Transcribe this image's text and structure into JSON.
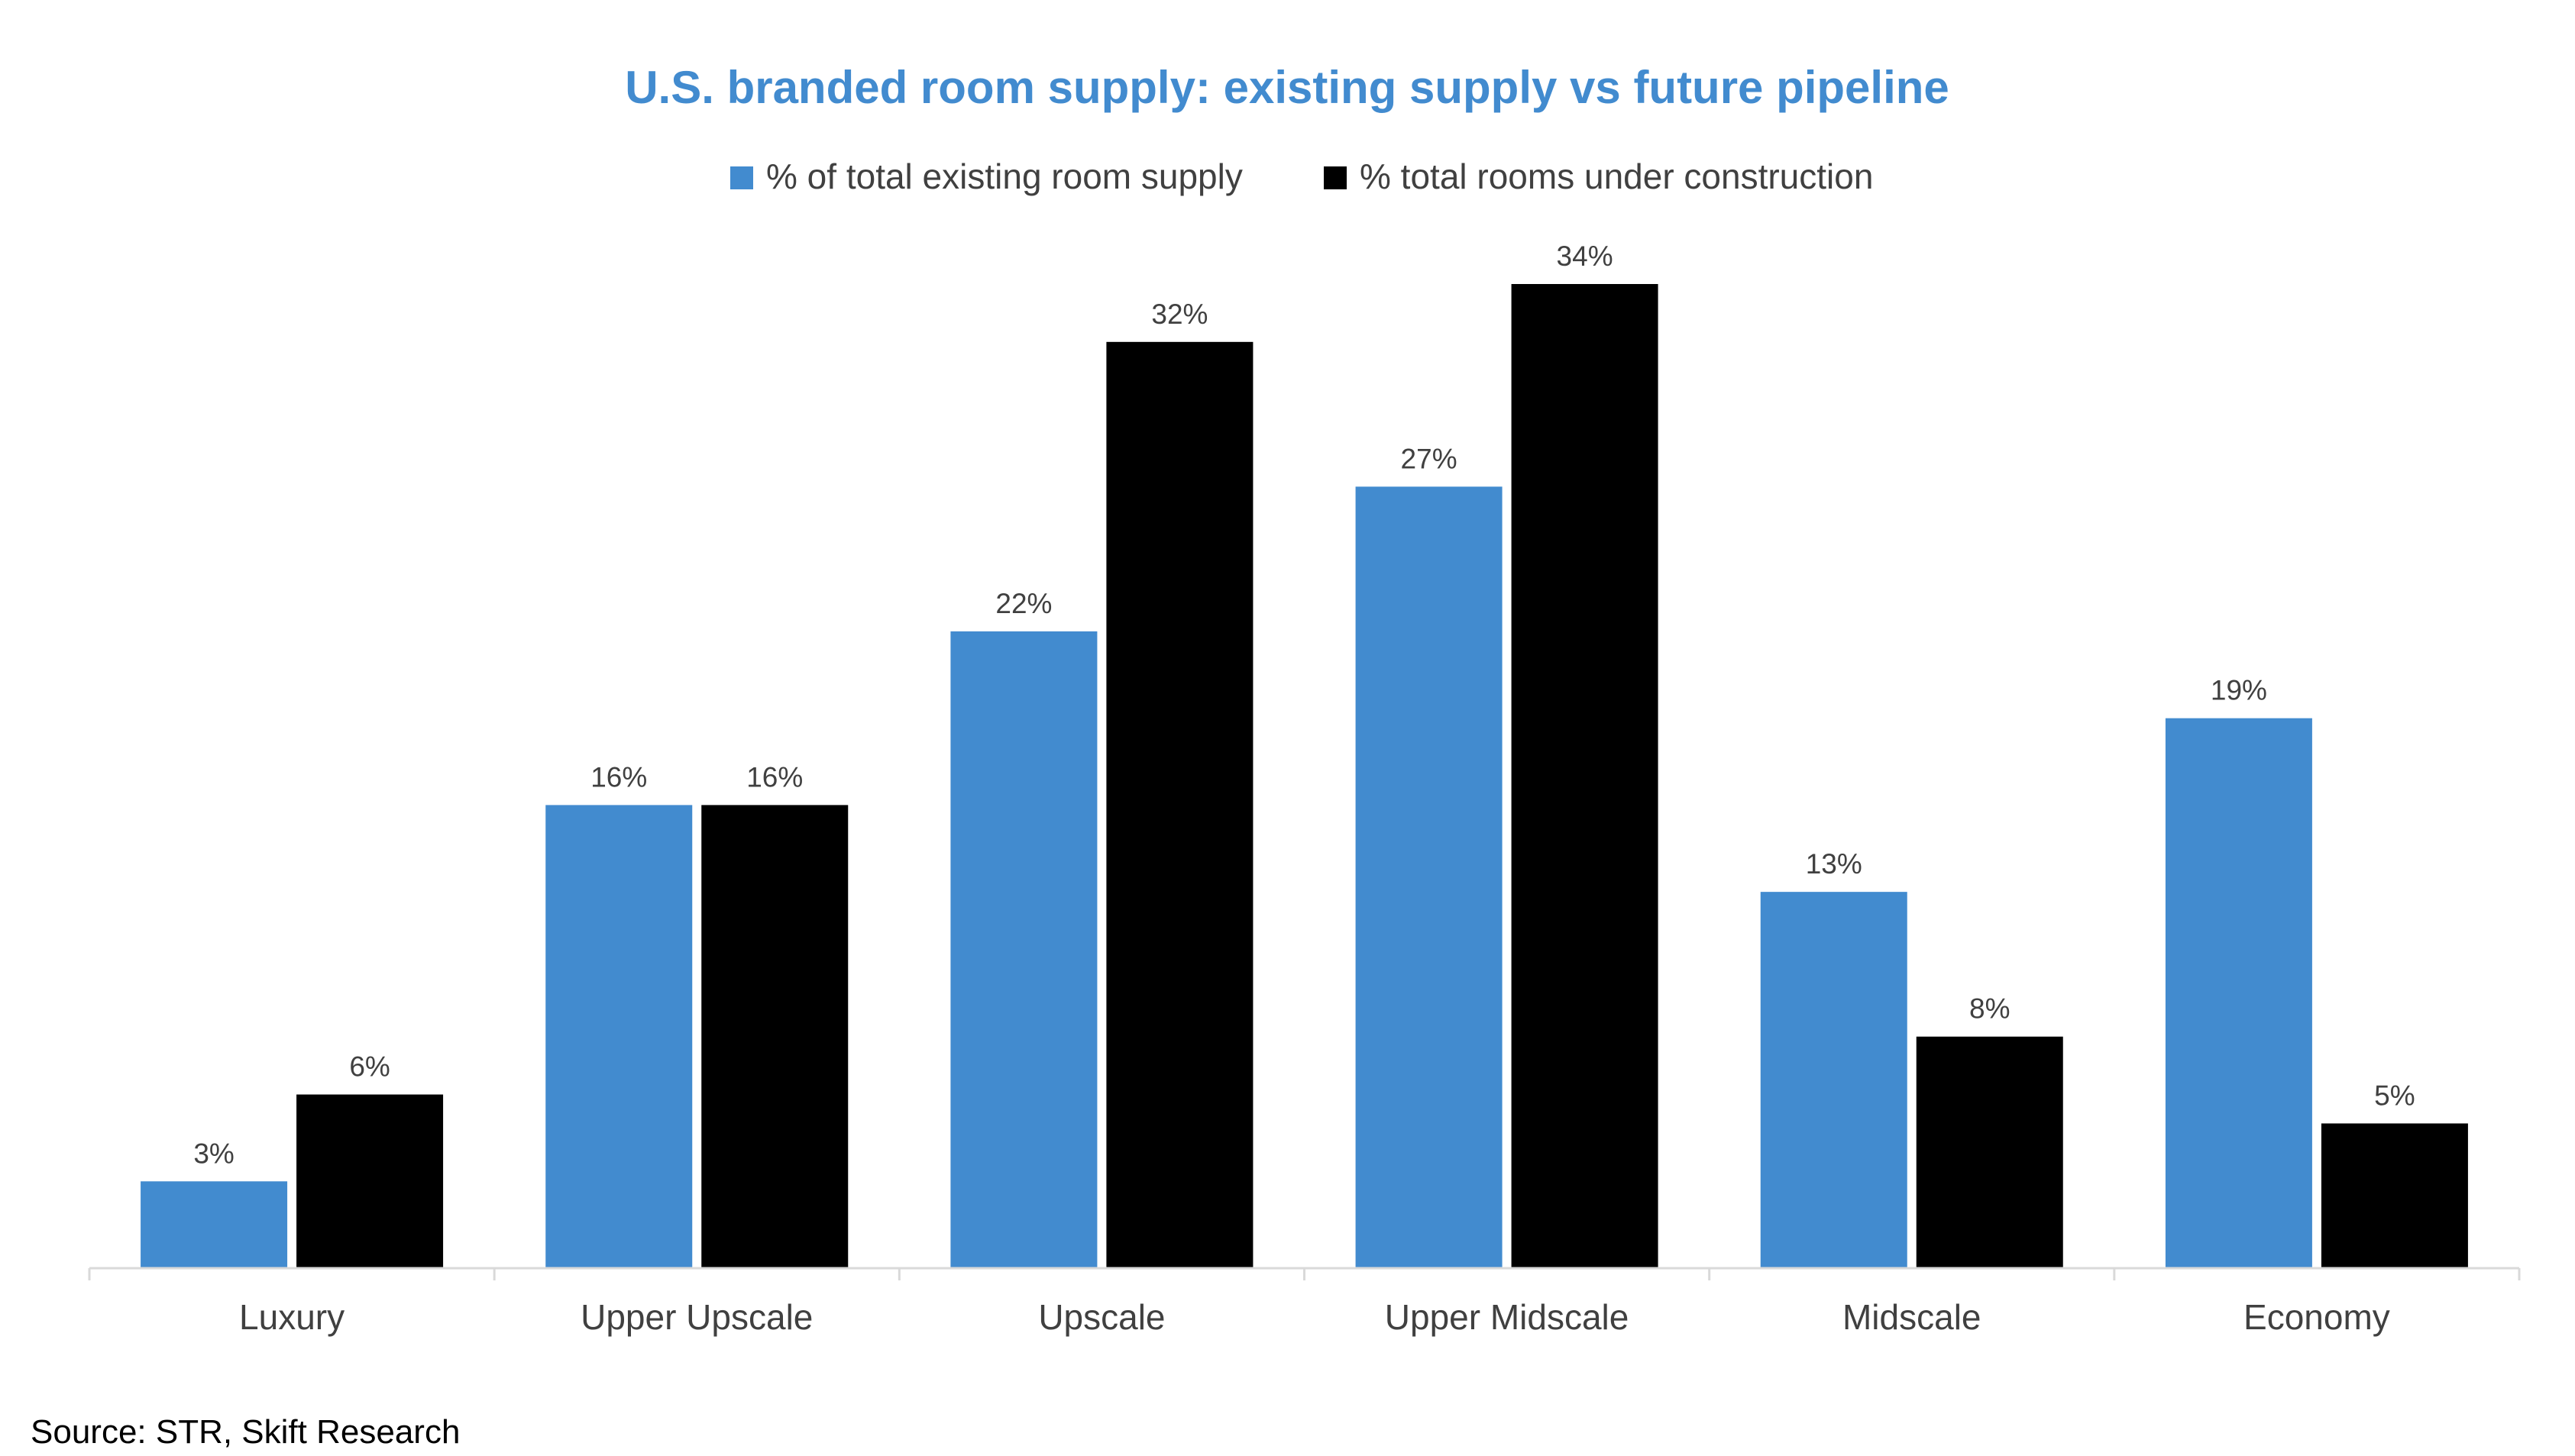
{
  "chart_data": {
    "type": "bar",
    "title": "U.S. branded room supply: existing supply vs future pipeline",
    "xlabel": "",
    "ylabel": "",
    "categories": [
      "Luxury",
      "Upper Upscale",
      "Upscale",
      "Upper Midscale",
      "Midscale",
      "Economy"
    ],
    "series": [
      {
        "name": "% of total existing room supply",
        "values": [
          3,
          16,
          22,
          27,
          13,
          19
        ],
        "labels": [
          "3%",
          "16%",
          "22%",
          "27%",
          "13%",
          "19%"
        ],
        "color": "#428BCF"
      },
      {
        "name": "% total rooms under construction",
        "values": [
          6,
          16,
          32,
          34,
          8,
          5
        ],
        "labels": [
          "6%",
          "16%",
          "32%",
          "34%",
          "8%",
          "5%"
        ],
        "color": "#000000"
      }
    ],
    "ylim": [
      0,
      34
    ],
    "grid": false,
    "legend_position": "top"
  },
  "source": "Source: STR, Skift Research",
  "colors": {
    "title": "#428BCF",
    "text": "#404040",
    "axis": "#D9D9D9",
    "source": "#000000"
  }
}
